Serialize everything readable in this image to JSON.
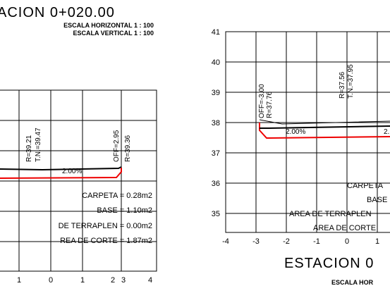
{
  "left": {
    "title": "ACION 0+020.00",
    "scale_h": "ESCALA HORIZONTAL 1 : 100",
    "scale_v": "ESCALA VERTICAL 1 : 100",
    "annotations": [
      "R=39.21",
      "T.N.=39.47",
      "OFF=2.95",
      "R=39.36",
      "2.00%"
    ],
    "areas": [
      "CARPETA = 0.28m2",
      "BASE = 1.10m2",
      "DE TERRAPLEN = 0.00m2",
      "REA DE CORTE = 1.87m2"
    ],
    "x_labels": [
      "1",
      "0",
      "1",
      "2",
      "3",
      "4"
    ]
  },
  "right": {
    "title": "ESTACION 0",
    "scale_h": "ESCALA HOR",
    "annotations": [
      "OFF=-3.00",
      "R=37.76",
      "R=37.56",
      "T.N.=37.95",
      "2.00%",
      "2."
    ],
    "areas": [
      "CARPETA",
      "BASE",
      "AREA DE TERRAPLEN",
      "AREA DE CORTE"
    ],
    "y_labels": [
      "41",
      "40",
      "39",
      "38",
      "37",
      "36",
      "35"
    ],
    "x_labels": [
      "-4",
      "-3",
      "-2",
      "-1",
      "0",
      "1"
    ]
  }
}
